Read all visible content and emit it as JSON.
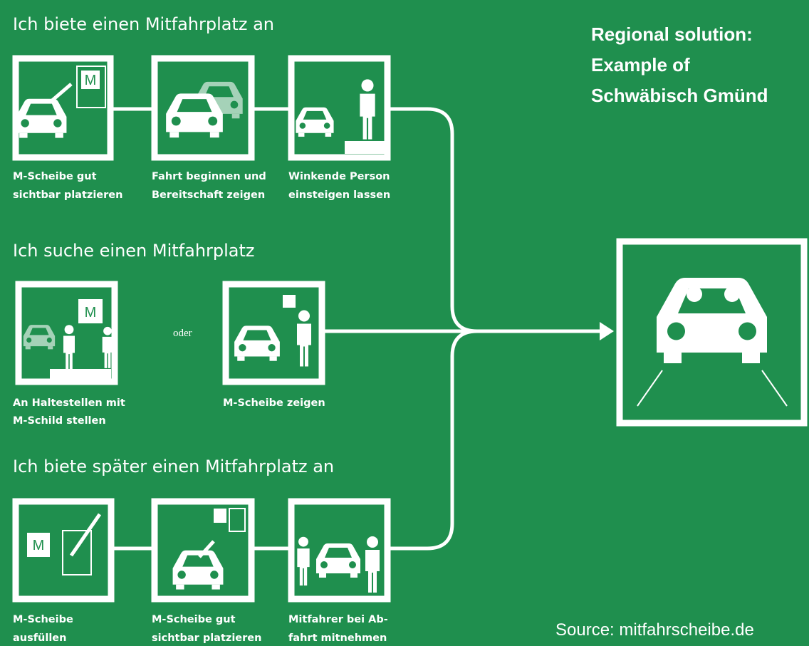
{
  "sections": [
    {
      "title": "Ich biete einen Mitfahrplatz an",
      "steps": [
        {
          "caption": [
            "M-Scheibe gut",
            "sichtbar platzieren"
          ]
        },
        {
          "caption": [
            "Fahrt beginnen und",
            "Bereitschaft zeigen"
          ]
        },
        {
          "caption": [
            "Winkende Person",
            "einsteigen lassen"
          ]
        }
      ]
    },
    {
      "title": "Ich suche einen Mitfahrplatz",
      "steps": [
        {
          "caption": [
            "An Haltestellen mit",
            "M-Schild stellen"
          ]
        },
        {
          "caption": [
            "M-Scheibe zeigen"
          ]
        }
      ]
    },
    {
      "title": "Ich biete später einen Mitfahrplatz an",
      "steps": [
        {
          "caption": [
            "M-Scheibe",
            "ausfüllen"
          ]
        },
        {
          "caption": [
            "M-Scheibe gut",
            "sichtbar platzieren"
          ]
        },
        {
          "caption": [
            "Mitfahrer bei Ab-",
            "fahrt mitnehmen"
          ]
        }
      ]
    }
  ],
  "connector_label": "oder",
  "sign_letter": "M",
  "side_note": [
    "Regional solution:",
    "Example of",
    "Schwäbisch Gmünd"
  ],
  "source": "Source: mitfahrscheibe.de"
}
